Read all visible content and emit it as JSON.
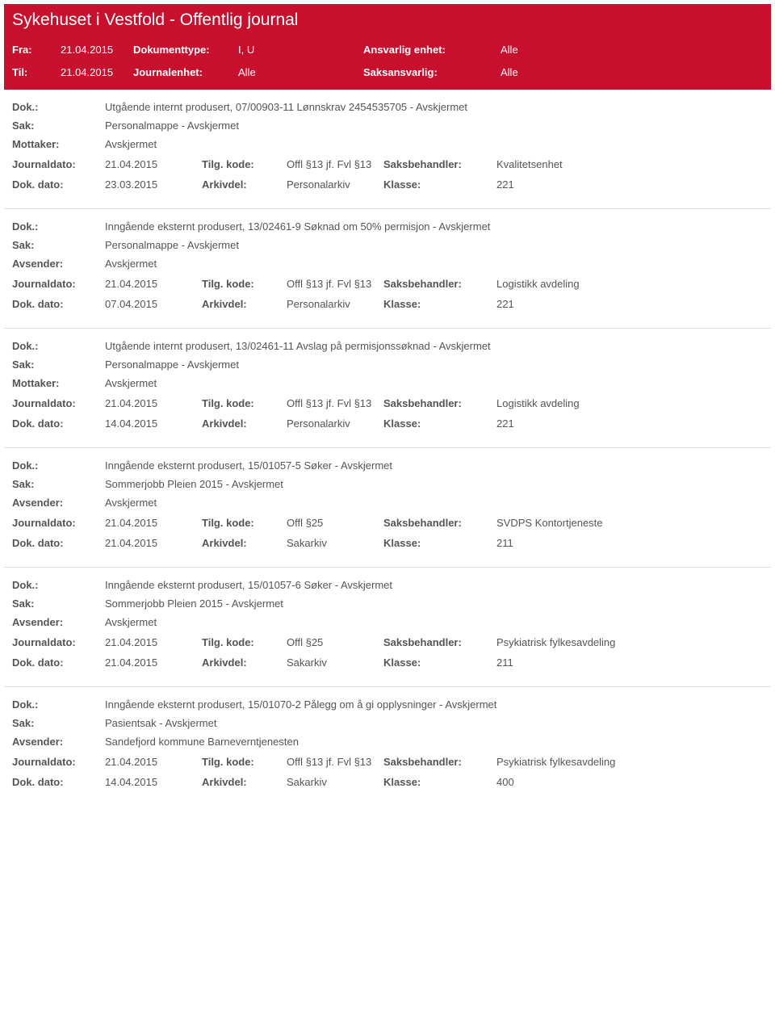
{
  "header": {
    "title": "Sykehuset i Vestfold - Offentlig journal",
    "labels": {
      "fra": "Fra:",
      "til": "Til:",
      "dokumenttype": "Dokumenttype:",
      "journalenhet": "Journalenhet:",
      "ansvarlig": "Ansvarlig enhet:",
      "saksansvarlig": "Saksansvarlig:"
    },
    "values": {
      "fra": "21.04.2015",
      "til": "21.04.2015",
      "dokumenttype": "I, U",
      "journalenhet": "Alle",
      "ansvarlig": "Alle",
      "saksansvarlig": "Alle"
    }
  },
  "labels": {
    "dok": "Dok.:",
    "sak": "Sak:",
    "mottaker": "Mottaker:",
    "avsender": "Avsender:",
    "journaldato": "Journaldato:",
    "dokdato": "Dok. dato:",
    "tilgkode": "Tilg. kode:",
    "arkivdel": "Arkivdel:",
    "saksbehandler": "Saksbehandler:",
    "klasse": "Klasse:"
  },
  "entries": [
    {
      "dok": "Utgående internt produsert, 07/00903-11 Lønnskrav 2454535705 - Avskjermet",
      "sak": "Personalmappe - Avskjermet",
      "party_label": "Mottaker:",
      "party": "Avskjermet",
      "journaldato": "21.04.2015",
      "tilgkode": "Offl §13 jf. Fvl §13",
      "saksbehandler": "Kvalitetsenhet",
      "dokdato": "23.03.2015",
      "arkivdel": "Personalarkiv",
      "klasse": "221"
    },
    {
      "dok": "Inngående eksternt produsert, 13/02461-9 Søknad om 50% permisjon - Avskjermet",
      "sak": "Personalmappe - Avskjermet",
      "party_label": "Avsender:",
      "party": "Avskjermet",
      "journaldato": "21.04.2015",
      "tilgkode": "Offl §13 jf. Fvl §13",
      "saksbehandler": "Logistikk avdeling",
      "dokdato": "07.04.2015",
      "arkivdel": "Personalarkiv",
      "klasse": "221"
    },
    {
      "dok": "Utgående internt produsert, 13/02461-11 Avslag på permisjonssøknad - Avskjermet",
      "sak": "Personalmappe - Avskjermet",
      "party_label": "Mottaker:",
      "party": "Avskjermet",
      "journaldato": "21.04.2015",
      "tilgkode": "Offl §13 jf. Fvl §13",
      "saksbehandler": "Logistikk avdeling",
      "dokdato": "14.04.2015",
      "arkivdel": "Personalarkiv",
      "klasse": "221"
    },
    {
      "dok": "Inngående eksternt produsert, 15/01057-5 Søker - Avskjermet",
      "sak": "Sommerjobb Pleien 2015 - Avskjermet",
      "party_label": "Avsender:",
      "party": "Avskjermet",
      "journaldato": "21.04.2015",
      "tilgkode": "Offl §25",
      "saksbehandler": "SVDPS Kontortjeneste",
      "dokdato": "21.04.2015",
      "arkivdel": "Sakarkiv",
      "klasse": "211"
    },
    {
      "dok": "Inngående eksternt produsert, 15/01057-6 Søker - Avskjermet",
      "sak": "Sommerjobb Pleien 2015 - Avskjermet",
      "party_label": "Avsender:",
      "party": "Avskjermet",
      "journaldato": "21.04.2015",
      "tilgkode": "Offl §25",
      "saksbehandler": "Psykiatrisk fylkesavdeling",
      "dokdato": "21.04.2015",
      "arkivdel": "Sakarkiv",
      "klasse": "211"
    },
    {
      "dok": "Inngående eksternt produsert, 15/01070-2 Pålegg om å gi opplysninger - Avskjermet",
      "sak": "Pasientsak - Avskjermet",
      "party_label": "Avsender:",
      "party": "Sandefjord kommune Barneverntjenesten",
      "journaldato": "21.04.2015",
      "tilgkode": "Offl §13 jf. Fvl §13",
      "saksbehandler": "Psykiatrisk fylkesavdeling",
      "dokdato": "14.04.2015",
      "arkivdel": "Sakarkiv",
      "klasse": "400"
    }
  ]
}
